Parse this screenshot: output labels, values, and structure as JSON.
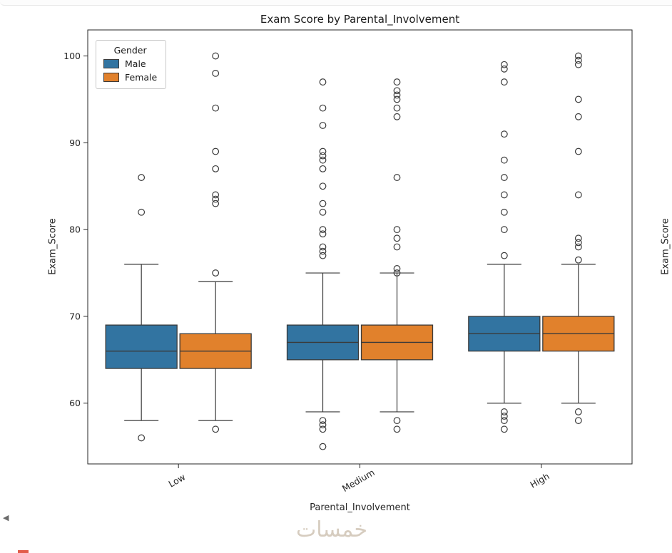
{
  "page": {
    "back_arrow": "◀",
    "watermark": "خمسات",
    "adjacent_chart_ylabel": "Exam_Score"
  },
  "chart_data": {
    "type": "boxplot",
    "title": "Exam Score by Parental_Involvement",
    "xlabel": "Parental_Involvement",
    "ylabel": "Exam_Score",
    "ylim": [
      53,
      103
    ],
    "yticks": [
      60,
      70,
      80,
      90,
      100
    ],
    "categories": [
      "Low",
      "Medium",
      "High"
    ],
    "grid": false,
    "legend": {
      "title": "Gender",
      "position": "upper left",
      "entries": [
        {
          "label": "Male",
          "color": "#3274a1"
        },
        {
          "label": "Female",
          "color": "#e1812c"
        }
      ]
    },
    "series": [
      {
        "name": "Male",
        "color": "#3274a1",
        "boxes": [
          {
            "category": "Low",
            "q1": 64,
            "median": 66,
            "q3": 69,
            "whisker_low": 58,
            "whisker_high": 76,
            "outliers": [
              86,
              82,
              56
            ]
          },
          {
            "category": "Medium",
            "q1": 65,
            "median": 67,
            "q3": 69,
            "whisker_low": 59,
            "whisker_high": 75,
            "outliers": [
              97,
              94,
              92,
              89,
              88.5,
              88,
              87,
              85,
              83,
              82,
              80,
              79.5,
              78,
              77.5,
              77,
              58,
              57.5,
              57,
              55
            ]
          },
          {
            "category": "High",
            "q1": 66,
            "median": 68,
            "q3": 70,
            "whisker_low": 60,
            "whisker_high": 76,
            "outliers": [
              99,
              98.5,
              97,
              91,
              88,
              86,
              84,
              82,
              80,
              77,
              59,
              58.5,
              58,
              57
            ]
          }
        ]
      },
      {
        "name": "Female",
        "color": "#e1812c",
        "boxes": [
          {
            "category": "Low",
            "q1": 64,
            "median": 66,
            "q3": 68,
            "whisker_low": 58,
            "whisker_high": 74,
            "outliers": [
              100,
              98,
              94,
              89,
              87,
              84,
              83.5,
              83,
              75,
              57
            ]
          },
          {
            "category": "Medium",
            "q1": 65,
            "median": 67,
            "q3": 69,
            "whisker_low": 59,
            "whisker_high": 75,
            "outliers": [
              97,
              96,
              95.5,
              95,
              94,
              93,
              86,
              80,
              79,
              78,
              75.5,
              75,
              58,
              57
            ]
          },
          {
            "category": "High",
            "q1": 66,
            "median": 68,
            "q3": 70,
            "whisker_low": 60,
            "whisker_high": 76,
            "outliers": [
              100,
              99.5,
              99,
              95,
              93,
              89,
              84,
              79,
              78.5,
              78,
              76.5,
              59,
              58
            ]
          }
        ]
      }
    ]
  }
}
